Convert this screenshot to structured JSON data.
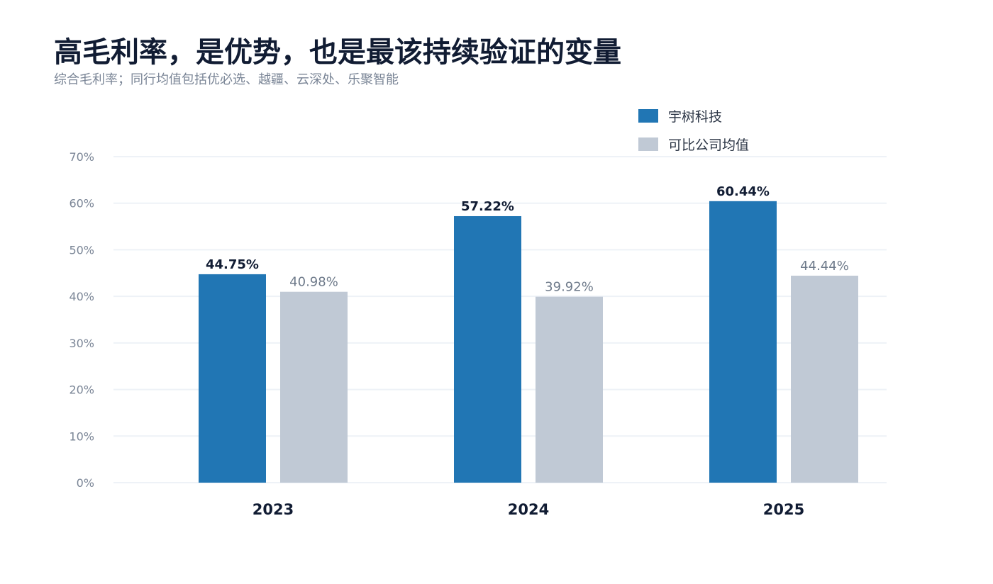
{
  "title": "高毛利率，是优势，也是最该持续验证的变量",
  "subtitle": "综合毛利率；同行均值包括优必选、越疆、云深处、乐聚智能",
  "colors": {
    "primary": "#2176b4",
    "secondary": "#c0c9d5",
    "grid": "#eef2f7",
    "tick": "#7a8596",
    "category": "#111c33",
    "primary_label": "#111c33",
    "secondary_label": "#6e7a8a"
  },
  "chart_data": {
    "type": "bar",
    "categories": [
      "2023",
      "2024",
      "2025"
    ],
    "series": [
      {
        "name": "宇树科技",
        "values": [
          44.75,
          57.22,
          60.44
        ],
        "labels": [
          "44.75%",
          "57.22%",
          "60.44%"
        ]
      },
      {
        "name": "可比公司均值",
        "values": [
          40.98,
          39.92,
          44.44
        ],
        "labels": [
          "40.98%",
          "39.92%",
          "44.44%"
        ]
      }
    ],
    "ylim": [
      0,
      70
    ],
    "yticks": [
      {
        "value": 0,
        "label": "0%"
      },
      {
        "value": 10,
        "label": "10%"
      },
      {
        "value": 20,
        "label": "20%"
      },
      {
        "value": 30,
        "label": "30%"
      },
      {
        "value": 40,
        "label": "40%"
      },
      {
        "value": 50,
        "label": "50%"
      },
      {
        "value": 60,
        "label": "60%"
      },
      {
        "value": 70,
        "label": "70%"
      }
    ],
    "grid": true,
    "legend": "top-right"
  }
}
